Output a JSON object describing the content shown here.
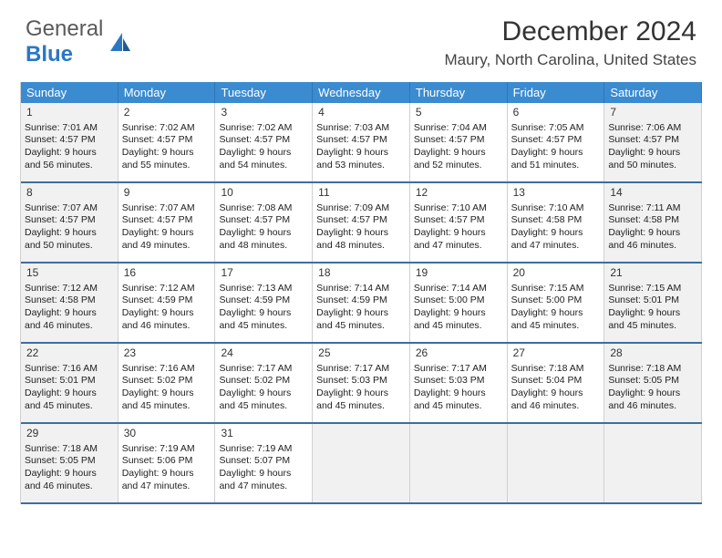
{
  "brand": {
    "top": "General",
    "bottom": "Blue"
  },
  "title": "December 2024",
  "location": "Maury, North Carolina, United States",
  "colors": {
    "header_bg": "#3b8bd1",
    "week_border": "#3b6fa0",
    "shade_bg": "#f1f1f1",
    "text": "#222222",
    "brand_blue": "#2a77c5"
  },
  "typography": {
    "base_family": "Arial",
    "title_size": 30,
    "location_size": 17,
    "day_size": 10.5
  },
  "day_headers": [
    "Sunday",
    "Monday",
    "Tuesday",
    "Wednesday",
    "Thursday",
    "Friday",
    "Saturday"
  ],
  "weeks": [
    [
      {
        "n": "1",
        "sr": "Sunrise: 7:01 AM",
        "ss": "Sunset: 4:57 PM",
        "d1": "Daylight: 9 hours",
        "d2": "and 56 minutes.",
        "shade": true
      },
      {
        "n": "2",
        "sr": "Sunrise: 7:02 AM",
        "ss": "Sunset: 4:57 PM",
        "d1": "Daylight: 9 hours",
        "d2": "and 55 minutes."
      },
      {
        "n": "3",
        "sr": "Sunrise: 7:02 AM",
        "ss": "Sunset: 4:57 PM",
        "d1": "Daylight: 9 hours",
        "d2": "and 54 minutes."
      },
      {
        "n": "4",
        "sr": "Sunrise: 7:03 AM",
        "ss": "Sunset: 4:57 PM",
        "d1": "Daylight: 9 hours",
        "d2": "and 53 minutes."
      },
      {
        "n": "5",
        "sr": "Sunrise: 7:04 AM",
        "ss": "Sunset: 4:57 PM",
        "d1": "Daylight: 9 hours",
        "d2": "and 52 minutes."
      },
      {
        "n": "6",
        "sr": "Sunrise: 7:05 AM",
        "ss": "Sunset: 4:57 PM",
        "d1": "Daylight: 9 hours",
        "d2": "and 51 minutes."
      },
      {
        "n": "7",
        "sr": "Sunrise: 7:06 AM",
        "ss": "Sunset: 4:57 PM",
        "d1": "Daylight: 9 hours",
        "d2": "and 50 minutes.",
        "shade": true
      }
    ],
    [
      {
        "n": "8",
        "sr": "Sunrise: 7:07 AM",
        "ss": "Sunset: 4:57 PM",
        "d1": "Daylight: 9 hours",
        "d2": "and 50 minutes.",
        "shade": true
      },
      {
        "n": "9",
        "sr": "Sunrise: 7:07 AM",
        "ss": "Sunset: 4:57 PM",
        "d1": "Daylight: 9 hours",
        "d2": "and 49 minutes."
      },
      {
        "n": "10",
        "sr": "Sunrise: 7:08 AM",
        "ss": "Sunset: 4:57 PM",
        "d1": "Daylight: 9 hours",
        "d2": "and 48 minutes."
      },
      {
        "n": "11",
        "sr": "Sunrise: 7:09 AM",
        "ss": "Sunset: 4:57 PM",
        "d1": "Daylight: 9 hours",
        "d2": "and 48 minutes."
      },
      {
        "n": "12",
        "sr": "Sunrise: 7:10 AM",
        "ss": "Sunset: 4:57 PM",
        "d1": "Daylight: 9 hours",
        "d2": "and 47 minutes."
      },
      {
        "n": "13",
        "sr": "Sunrise: 7:10 AM",
        "ss": "Sunset: 4:58 PM",
        "d1": "Daylight: 9 hours",
        "d2": "and 47 minutes."
      },
      {
        "n": "14",
        "sr": "Sunrise: 7:11 AM",
        "ss": "Sunset: 4:58 PM",
        "d1": "Daylight: 9 hours",
        "d2": "and 46 minutes.",
        "shade": true
      }
    ],
    [
      {
        "n": "15",
        "sr": "Sunrise: 7:12 AM",
        "ss": "Sunset: 4:58 PM",
        "d1": "Daylight: 9 hours",
        "d2": "and 46 minutes.",
        "shade": true
      },
      {
        "n": "16",
        "sr": "Sunrise: 7:12 AM",
        "ss": "Sunset: 4:59 PM",
        "d1": "Daylight: 9 hours",
        "d2": "and 46 minutes."
      },
      {
        "n": "17",
        "sr": "Sunrise: 7:13 AM",
        "ss": "Sunset: 4:59 PM",
        "d1": "Daylight: 9 hours",
        "d2": "and 45 minutes."
      },
      {
        "n": "18",
        "sr": "Sunrise: 7:14 AM",
        "ss": "Sunset: 4:59 PM",
        "d1": "Daylight: 9 hours",
        "d2": "and 45 minutes."
      },
      {
        "n": "19",
        "sr": "Sunrise: 7:14 AM",
        "ss": "Sunset: 5:00 PM",
        "d1": "Daylight: 9 hours",
        "d2": "and 45 minutes."
      },
      {
        "n": "20",
        "sr": "Sunrise: 7:15 AM",
        "ss": "Sunset: 5:00 PM",
        "d1": "Daylight: 9 hours",
        "d2": "and 45 minutes."
      },
      {
        "n": "21",
        "sr": "Sunrise: 7:15 AM",
        "ss": "Sunset: 5:01 PM",
        "d1": "Daylight: 9 hours",
        "d2": "and 45 minutes.",
        "shade": true
      }
    ],
    [
      {
        "n": "22",
        "sr": "Sunrise: 7:16 AM",
        "ss": "Sunset: 5:01 PM",
        "d1": "Daylight: 9 hours",
        "d2": "and 45 minutes.",
        "shade": true
      },
      {
        "n": "23",
        "sr": "Sunrise: 7:16 AM",
        "ss": "Sunset: 5:02 PM",
        "d1": "Daylight: 9 hours",
        "d2": "and 45 minutes."
      },
      {
        "n": "24",
        "sr": "Sunrise: 7:17 AM",
        "ss": "Sunset: 5:02 PM",
        "d1": "Daylight: 9 hours",
        "d2": "and 45 minutes."
      },
      {
        "n": "25",
        "sr": "Sunrise: 7:17 AM",
        "ss": "Sunset: 5:03 PM",
        "d1": "Daylight: 9 hours",
        "d2": "and 45 minutes."
      },
      {
        "n": "26",
        "sr": "Sunrise: 7:17 AM",
        "ss": "Sunset: 5:03 PM",
        "d1": "Daylight: 9 hours",
        "d2": "and 45 minutes."
      },
      {
        "n": "27",
        "sr": "Sunrise: 7:18 AM",
        "ss": "Sunset: 5:04 PM",
        "d1": "Daylight: 9 hours",
        "d2": "and 46 minutes."
      },
      {
        "n": "28",
        "sr": "Sunrise: 7:18 AM",
        "ss": "Sunset: 5:05 PM",
        "d1": "Daylight: 9 hours",
        "d2": "and 46 minutes.",
        "shade": true
      }
    ],
    [
      {
        "n": "29",
        "sr": "Sunrise: 7:18 AM",
        "ss": "Sunset: 5:05 PM",
        "d1": "Daylight: 9 hours",
        "d2": "and 46 minutes.",
        "shade": true
      },
      {
        "n": "30",
        "sr": "Sunrise: 7:19 AM",
        "ss": "Sunset: 5:06 PM",
        "d1": "Daylight: 9 hours",
        "d2": "and 47 minutes."
      },
      {
        "n": "31",
        "sr": "Sunrise: 7:19 AM",
        "ss": "Sunset: 5:07 PM",
        "d1": "Daylight: 9 hours",
        "d2": "and 47 minutes."
      },
      {
        "empty": true
      },
      {
        "empty": true
      },
      {
        "empty": true
      },
      {
        "empty": true
      }
    ]
  ]
}
